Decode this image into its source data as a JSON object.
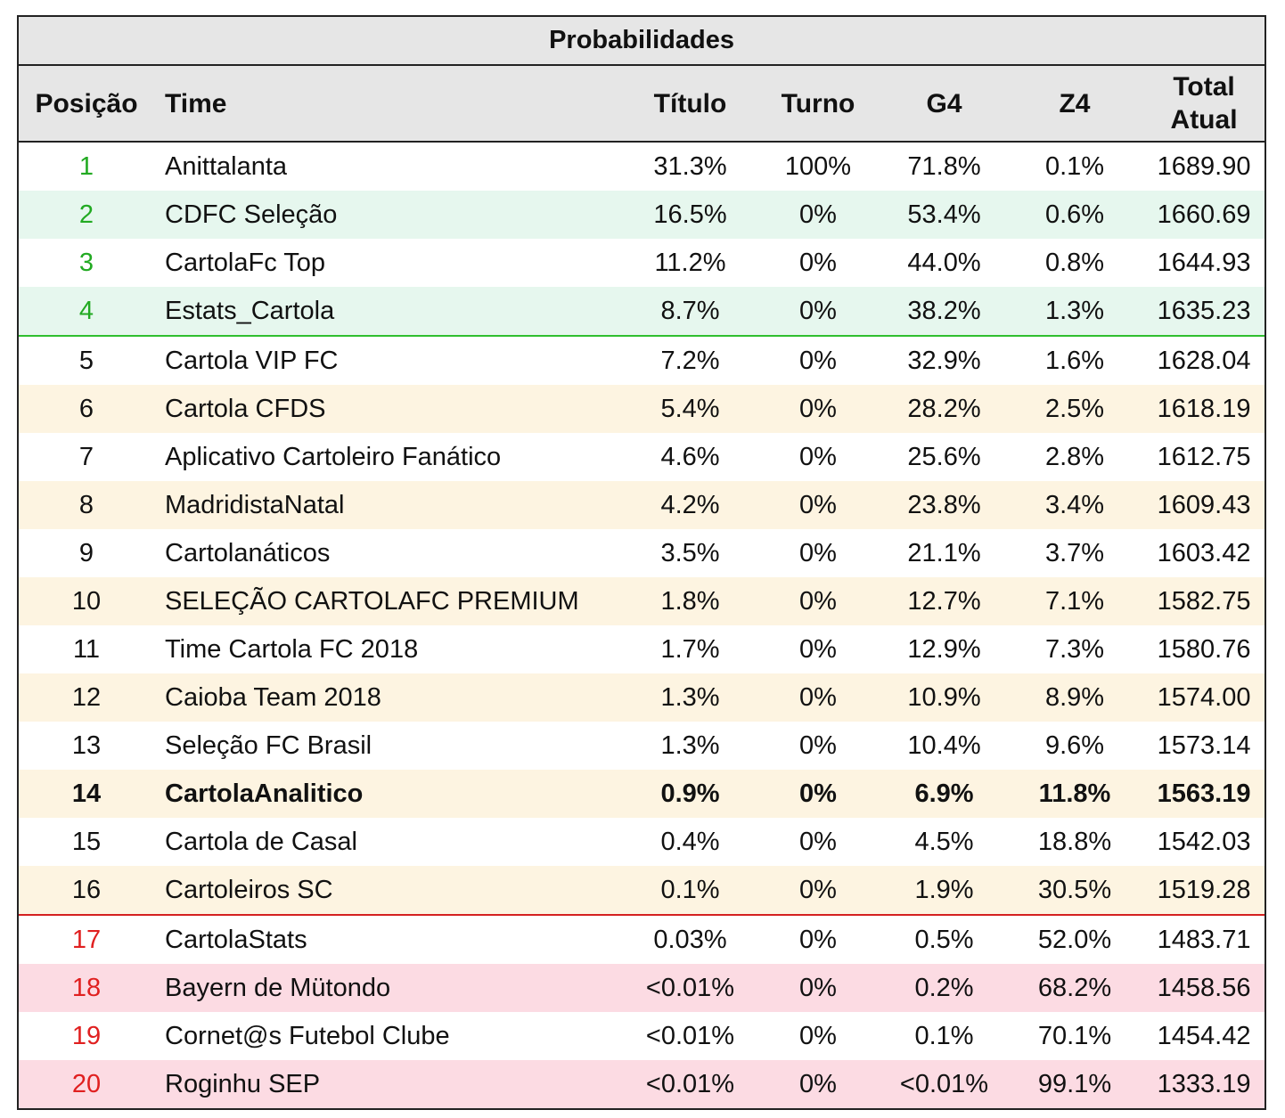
{
  "table": {
    "title": "Probabilidades",
    "headers": {
      "position": "Posição",
      "team": "Time",
      "title_prob": "Título",
      "turn": "Turno",
      "g4": "G4",
      "z4": "Z4",
      "total_line1": "Total",
      "total_line2": "Atual"
    },
    "colors": {
      "header_bg": "#e6e6e6",
      "g4_zone_text": "#22aa22",
      "g4_zone_alt_bg": "#e6f7ee",
      "mid_alt_bg": "#fdf4e1",
      "z4_zone_text": "#e02020",
      "z4_zone_alt_bg": "#fcdbe3",
      "g4_separator": "#2fbf2f",
      "z4_separator": "#d42020",
      "default_bg": "#ffffff",
      "default_text": "#111111"
    },
    "rows": [
      {
        "pos": "1",
        "team": "Anittalanta",
        "titulo": "31.3%",
        "turno": "100%",
        "g4": "71.8%",
        "z4": "0.1%",
        "total": "1689.90",
        "zone": "g4",
        "shaded": false,
        "bold": false
      },
      {
        "pos": "2",
        "team": "CDFC Seleção",
        "titulo": "16.5%",
        "turno": "0%",
        "g4": "53.4%",
        "z4": "0.6%",
        "total": "1660.69",
        "zone": "g4",
        "shaded": true,
        "bold": false
      },
      {
        "pos": "3",
        "team": "CartolaFc Top",
        "titulo": "11.2%",
        "turno": "0%",
        "g4": "44.0%",
        "z4": "0.8%",
        "total": "1644.93",
        "zone": "g4",
        "shaded": false,
        "bold": false
      },
      {
        "pos": "4",
        "team": "Estats_Cartola",
        "titulo": "8.7%",
        "turno": "0%",
        "g4": "38.2%",
        "z4": "1.3%",
        "total": "1635.23",
        "zone": "g4",
        "shaded": true,
        "bold": false
      },
      {
        "pos": "5",
        "team": "Cartola VIP FC",
        "titulo": "7.2%",
        "turno": "0%",
        "g4": "32.9%",
        "z4": "1.6%",
        "total": "1628.04",
        "zone": "mid",
        "shaded": false,
        "bold": false
      },
      {
        "pos": "6",
        "team": "Cartola CFDS",
        "titulo": "5.4%",
        "turno": "0%",
        "g4": "28.2%",
        "z4": "2.5%",
        "total": "1618.19",
        "zone": "mid",
        "shaded": true,
        "bold": false
      },
      {
        "pos": "7",
        "team": "Aplicativo Cartoleiro Fanático",
        "titulo": "4.6%",
        "turno": "0%",
        "g4": "25.6%",
        "z4": "2.8%",
        "total": "1612.75",
        "zone": "mid",
        "shaded": false,
        "bold": false
      },
      {
        "pos": "8",
        "team": "MadridistaNatal",
        "titulo": "4.2%",
        "turno": "0%",
        "g4": "23.8%",
        "z4": "3.4%",
        "total": "1609.43",
        "zone": "mid",
        "shaded": true,
        "bold": false
      },
      {
        "pos": "9",
        "team": "Cartolanáticos",
        "titulo": "3.5%",
        "turno": "0%",
        "g4": "21.1%",
        "z4": "3.7%",
        "total": "1603.42",
        "zone": "mid",
        "shaded": false,
        "bold": false
      },
      {
        "pos": "10",
        "team": "SELEÇÃO CARTOLAFC PREMIUM",
        "titulo": "1.8%",
        "turno": "0%",
        "g4": "12.7%",
        "z4": "7.1%",
        "total": "1582.75",
        "zone": "mid",
        "shaded": true,
        "bold": false
      },
      {
        "pos": "11",
        "team": "Time Cartola FC 2018",
        "titulo": "1.7%",
        "turno": "0%",
        "g4": "12.9%",
        "z4": "7.3%",
        "total": "1580.76",
        "zone": "mid",
        "shaded": false,
        "bold": false
      },
      {
        "pos": "12",
        "team": "Caioba Team 2018",
        "titulo": "1.3%",
        "turno": "0%",
        "g4": "10.9%",
        "z4": "8.9%",
        "total": "1574.00",
        "zone": "mid",
        "shaded": true,
        "bold": false
      },
      {
        "pos": "13",
        "team": "Seleção FC Brasil",
        "titulo": "1.3%",
        "turno": "0%",
        "g4": "10.4%",
        "z4": "9.6%",
        "total": "1573.14",
        "zone": "mid",
        "shaded": false,
        "bold": false
      },
      {
        "pos": "14",
        "team": "CartolaAnalitico",
        "titulo": "0.9%",
        "turno": "0%",
        "g4": "6.9%",
        "z4": "11.8%",
        "total": "1563.19",
        "zone": "mid",
        "shaded": true,
        "bold": true
      },
      {
        "pos": "15",
        "team": "Cartola de Casal",
        "titulo": "0.4%",
        "turno": "0%",
        "g4": "4.5%",
        "z4": "18.8%",
        "total": "1542.03",
        "zone": "mid",
        "shaded": false,
        "bold": false
      },
      {
        "pos": "16",
        "team": "Cartoleiros SC",
        "titulo": "0.1%",
        "turno": "0%",
        "g4": "1.9%",
        "z4": "30.5%",
        "total": "1519.28",
        "zone": "mid",
        "shaded": true,
        "bold": false
      },
      {
        "pos": "17",
        "team": "CartolaStats",
        "titulo": "0.03%",
        "turno": "0%",
        "g4": "0.5%",
        "z4": "52.0%",
        "total": "1483.71",
        "zone": "z4",
        "shaded": false,
        "bold": false
      },
      {
        "pos": "18",
        "team": "Bayern de Mütondo",
        "titulo": "<0.01%",
        "turno": "0%",
        "g4": "0.2%",
        "z4": "68.2%",
        "total": "1458.56",
        "zone": "z4",
        "shaded": true,
        "bold": false
      },
      {
        "pos": "19",
        "team": "Cornet@s Futebol Clube",
        "titulo": "<0.01%",
        "turno": "0%",
        "g4": "0.1%",
        "z4": "70.1%",
        "total": "1454.42",
        "zone": "z4",
        "shaded": false,
        "bold": false
      },
      {
        "pos": "20",
        "team": "Roginhu SEP",
        "titulo": "<0.01%",
        "turno": "0%",
        "g4": "<0.01%",
        "z4": "99.1%",
        "total": "1333.19",
        "zone": "z4",
        "shaded": true,
        "bold": false
      }
    ]
  }
}
